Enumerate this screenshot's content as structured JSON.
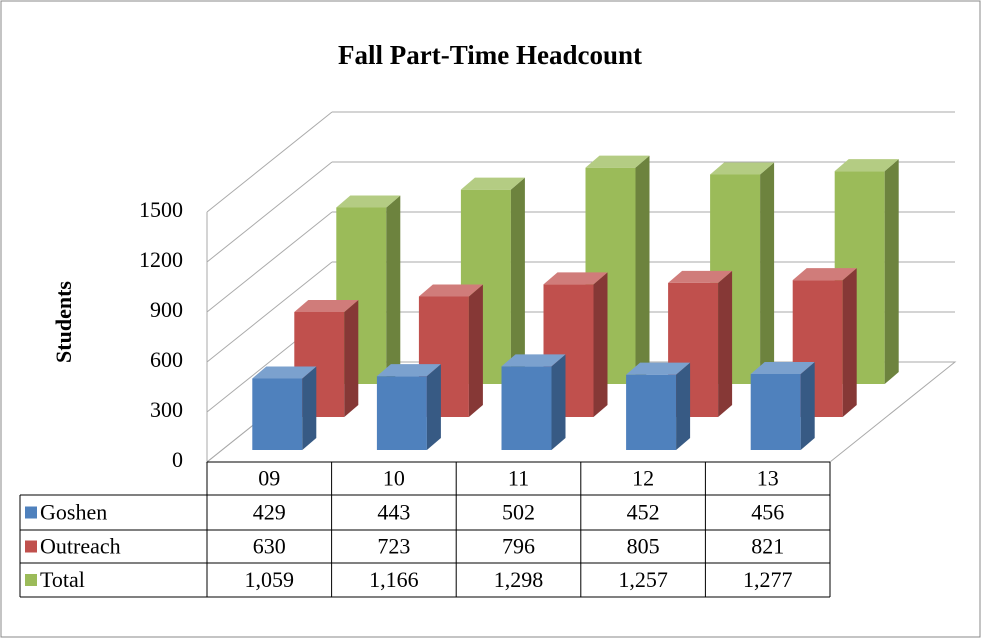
{
  "chart_data": {
    "type": "bar3d",
    "title": "Fall Part-Time Headcount",
    "y_label": "Students",
    "categories": [
      "09",
      "10",
      "11",
      "12",
      "13"
    ],
    "series": [
      {
        "name": "Goshen",
        "color": "#4f81bd",
        "values": [
          429,
          443,
          502,
          452,
          456
        ]
      },
      {
        "name": "Outreach",
        "color": "#c0504d",
        "values": [
          630,
          723,
          796,
          805,
          821
        ]
      },
      {
        "name": "Total",
        "color": "#9bbb59",
        "values": [
          1059,
          1166,
          1298,
          1257,
          1277
        ],
        "value_labels": [
          "1,059",
          "1,166",
          "1,298",
          "1,257",
          "1,277"
        ]
      }
    ],
    "ylim": [
      0,
      1500
    ],
    "yticks": [
      0,
      300,
      600,
      900,
      1200,
      1500
    ],
    "grid": true,
    "data_table": true
  }
}
